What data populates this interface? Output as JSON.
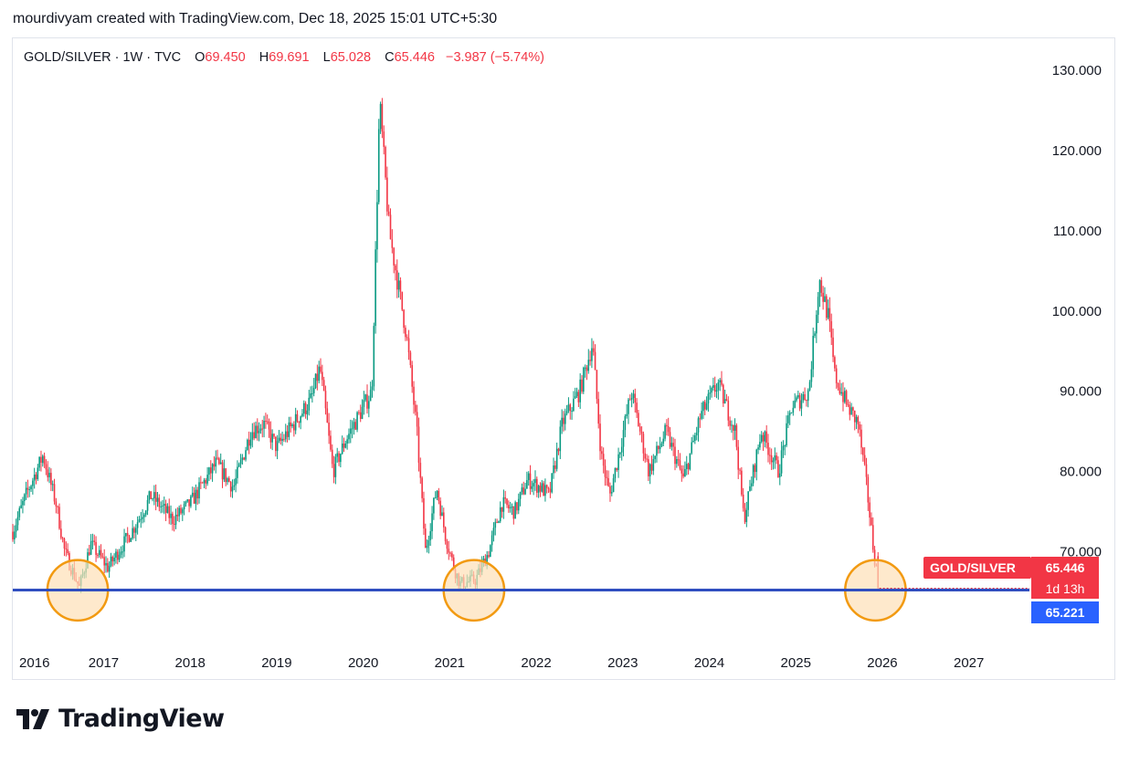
{
  "header": {
    "caption": "mourdivyam created with TradingView.com, Dec 18, 2025 15:01 UTC+5:30"
  },
  "legend": {
    "symbol": "GOLD/SILVER",
    "interval": "1W",
    "source": "TVC",
    "open_label": "O",
    "open": "69.450",
    "high_label": "H",
    "high": "69.691",
    "low_label": "L",
    "low": "65.028",
    "close_label": "C",
    "close": "65.446",
    "change": "−3.987 (−5.74%)"
  },
  "price_tags": {
    "symbol": "GOLD/SILVER",
    "last_price": "65.446",
    "countdown": "1d 13h",
    "horizontal_line": "65.221"
  },
  "footer": {
    "brand": "TradingView"
  },
  "colors": {
    "up": "#089981",
    "down": "#f23645",
    "hline": "#2f4ec0",
    "highlight_stroke": "#f29a11",
    "highlight_fill": "#fde0b6"
  },
  "chart_data": {
    "type": "candlestick",
    "title": "GOLD/SILVER · 1W · TVC",
    "y_range": [
      58,
      134
    ],
    "y_ticks": [
      "130.000",
      "120.000",
      "110.000",
      "100.000",
      "90.000",
      "80.000",
      "70.000"
    ],
    "y_tick_values": [
      130,
      120,
      110,
      100,
      90,
      80,
      70
    ],
    "x_range": [
      2015.95,
      2027.7
    ],
    "x_ticks": [
      "2016",
      "2017",
      "2018",
      "2019",
      "2020",
      "2021",
      "2022",
      "2023",
      "2024",
      "2025",
      "2026",
      "2027"
    ],
    "x_tick_values": [
      2016,
      2017,
      2018,
      2019,
      2020,
      2021,
      2022,
      2023,
      2024,
      2025,
      2026,
      2027
    ],
    "horizontal_line": 65.221,
    "last_close": 65.446,
    "highlights": [
      {
        "x": 2016.7,
        "y": 65.2
      },
      {
        "x": 2021.28,
        "y": 65.2
      },
      {
        "x": 2025.92,
        "y": 65.2
      }
    ],
    "path_keypoints": [
      [
        2015.95,
        72.5
      ],
      [
        2016.1,
        77
      ],
      [
        2016.3,
        82
      ],
      [
        2016.45,
        76
      ],
      [
        2016.55,
        70
      ],
      [
        2016.72,
        65.5
      ],
      [
        2016.85,
        71
      ],
      [
        2017.05,
        68
      ],
      [
        2017.35,
        73
      ],
      [
        2017.55,
        77
      ],
      [
        2017.8,
        74
      ],
      [
        2018.0,
        76
      ],
      [
        2018.3,
        81
      ],
      [
        2018.5,
        78
      ],
      [
        2018.7,
        85
      ],
      [
        2018.85,
        86
      ],
      [
        2019.0,
        83
      ],
      [
        2019.2,
        86
      ],
      [
        2019.4,
        89
      ],
      [
        2019.5,
        93
      ],
      [
        2019.65,
        80
      ],
      [
        2019.8,
        84
      ],
      [
        2019.95,
        87
      ],
      [
        2020.1,
        90
      ],
      [
        2020.19,
        126
      ],
      [
        2020.3,
        110
      ],
      [
        2020.5,
        97
      ],
      [
        2020.62,
        85
      ],
      [
        2020.72,
        70
      ],
      [
        2020.85,
        78
      ],
      [
        2020.95,
        72
      ],
      [
        2021.05,
        68
      ],
      [
        2021.12,
        66
      ],
      [
        2021.3,
        66.5
      ],
      [
        2021.45,
        70
      ],
      [
        2021.6,
        76
      ],
      [
        2021.75,
        75
      ],
      [
        2021.9,
        79
      ],
      [
        2022.05,
        78
      ],
      [
        2022.15,
        77
      ],
      [
        2022.3,
        86
      ],
      [
        2022.5,
        90
      ],
      [
        2022.65,
        96
      ],
      [
        2022.75,
        82
      ],
      [
        2022.85,
        77
      ],
      [
        2022.95,
        82
      ],
      [
        2023.1,
        90
      ],
      [
        2023.3,
        80
      ],
      [
        2023.5,
        85
      ],
      [
        2023.7,
        79
      ],
      [
        2023.9,
        87
      ],
      [
        2024.1,
        91
      ],
      [
        2024.3,
        85
      ],
      [
        2024.4,
        74
      ],
      [
        2024.6,
        85
      ],
      [
        2024.8,
        80
      ],
      [
        2024.95,
        88
      ],
      [
        2025.15,
        90
      ],
      [
        2025.27,
        104
      ],
      [
        2025.38,
        99
      ],
      [
        2025.45,
        92
      ],
      [
        2025.6,
        88
      ],
      [
        2025.72,
        86
      ],
      [
        2025.82,
        78
      ],
      [
        2025.9,
        70
      ],
      [
        2025.965,
        65.446
      ]
    ]
  }
}
